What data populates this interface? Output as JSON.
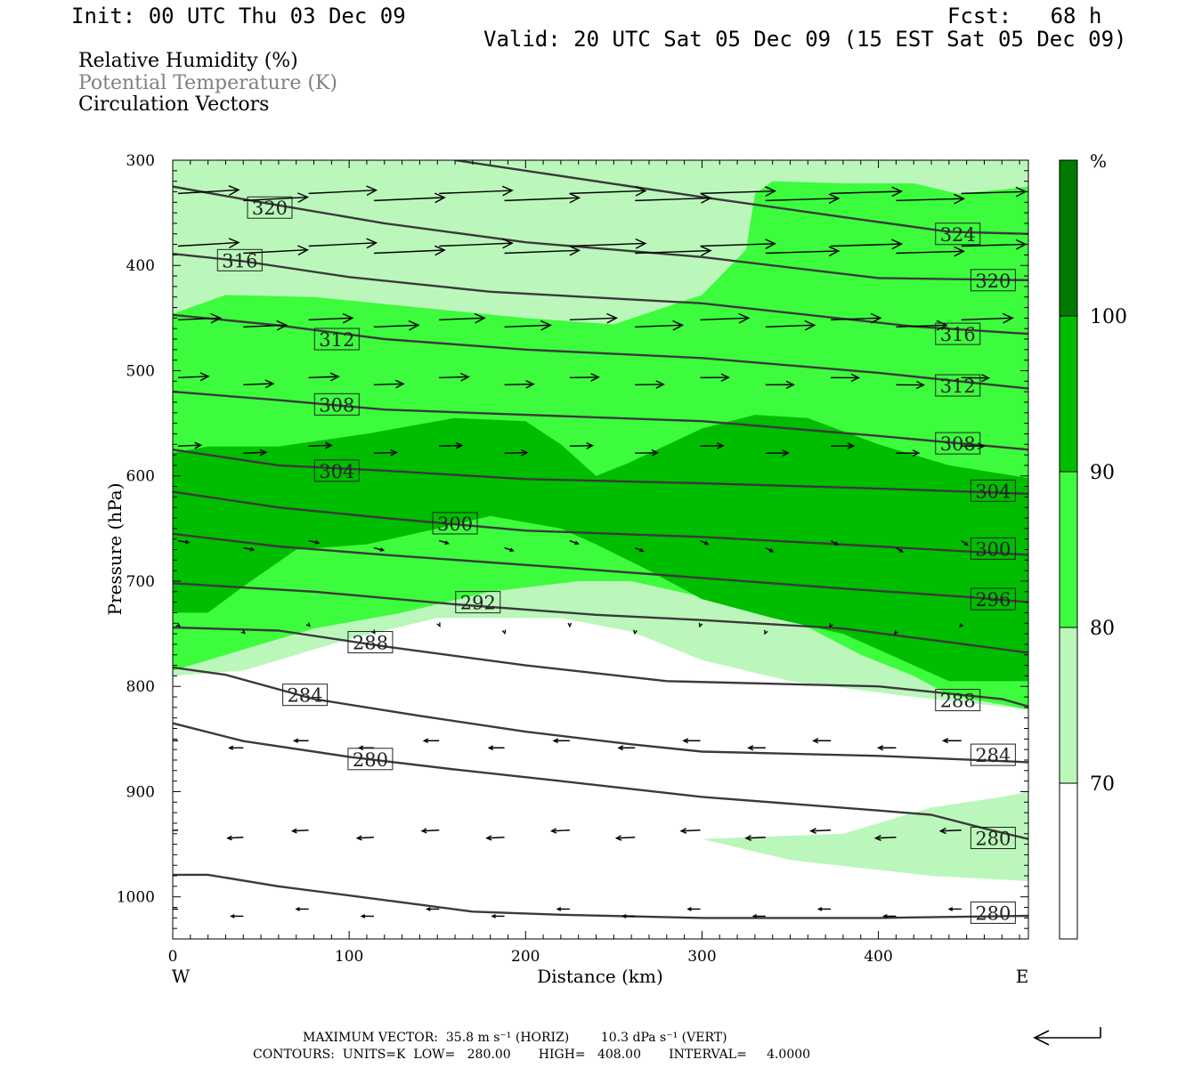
{
  "header": {
    "init": "Init: 00 UTC Thu 03 Dec 09",
    "fcst": "Fcst:   68 h",
    "valid": "Valid: 20 UTC Sat 05 Dec 09 (15 EST Sat 05 Dec 09)"
  },
  "legend_lines": [
    {
      "text": "Relative Humidity (%)",
      "color": "#000000"
    },
    {
      "text": "Potential Temperature (K)",
      "color": "#808080"
    },
    {
      "text": "Circulation Vectors",
      "color": "#000000"
    }
  ],
  "footer": {
    "line1": "MAXIMUM VECTOR:  35.8 m s⁻¹ (HORIZ)        10.3 dPa s⁻¹ (VERT)",
    "line2": "CONTOURS:  UNITS=K  LOW=   280.00       HIGH=   408.00       INTERVAL=     4.0000"
  },
  "chart_data": {
    "type": "cross-section",
    "xlabel": "Distance (km)",
    "ylabel": "Pressure (hPa)",
    "xlim": [
      0,
      485
    ],
    "ylim": [
      300,
      1040
    ],
    "x_ticks": [
      0,
      100,
      200,
      300,
      400
    ],
    "y_ticks": [
      300,
      400,
      500,
      600,
      700,
      800,
      900,
      1000
    ],
    "x_end_labels": {
      "left": "W",
      "right": "E"
    },
    "colorbar": {
      "unit": "%",
      "levels": [
        70,
        80,
        90,
        100
      ],
      "colors": [
        "#ffffff",
        "#bbf7bb",
        "#3dfc3d",
        "#00bd00",
        "#007a00"
      ]
    },
    "rh_fill": [
      {
        "level": 70,
        "color": "#bbf7bb",
        "points": [
          [
            0,
            300
          ],
          [
            485,
            300
          ],
          [
            485,
            985
          ],
          [
            430,
            980
          ],
          [
            350,
            965
          ],
          [
            300,
            945
          ],
          [
            380,
            940
          ],
          [
            430,
            915
          ],
          [
            470,
            905
          ],
          [
            485,
            900
          ],
          [
            485,
            822
          ],
          [
            420,
            810
          ],
          [
            350,
            795
          ],
          [
            300,
            775
          ],
          [
            260,
            748
          ],
          [
            220,
            735
          ],
          [
            150,
            735
          ],
          [
            100,
            755
          ],
          [
            40,
            785
          ],
          [
            0,
            790
          ]
        ]
      },
      {
        "level": 80,
        "color": "#3dfc3d",
        "points": [
          [
            0,
            446
          ],
          [
            30,
            428
          ],
          [
            80,
            430
          ],
          [
            140,
            440
          ],
          [
            200,
            450
          ],
          [
            250,
            456
          ],
          [
            300,
            428
          ],
          [
            325,
            385
          ],
          [
            330,
            332
          ],
          [
            340,
            320
          ],
          [
            380,
            322
          ],
          [
            420,
            322
          ],
          [
            445,
            332
          ],
          [
            470,
            328
          ],
          [
            485,
            325
          ],
          [
            485,
            822
          ],
          [
            440,
            808
          ],
          [
            420,
            790
          ],
          [
            390,
            770
          ],
          [
            350,
            735
          ],
          [
            300,
            715
          ],
          [
            260,
            700
          ],
          [
            230,
            700
          ],
          [
            180,
            710
          ],
          [
            130,
            730
          ],
          [
            80,
            745
          ],
          [
            40,
            765
          ],
          [
            10,
            780
          ],
          [
            0,
            785
          ]
        ]
      },
      {
        "level": 90,
        "color": "#00bd00",
        "points": [
          [
            0,
            578
          ],
          [
            20,
            572
          ],
          [
            60,
            572
          ],
          [
            110,
            560
          ],
          [
            160,
            545
          ],
          [
            200,
            548
          ],
          [
            220,
            570
          ],
          [
            240,
            600
          ],
          [
            258,
            588
          ],
          [
            300,
            555
          ],
          [
            330,
            542
          ],
          [
            360,
            545
          ],
          [
            400,
            570
          ],
          [
            440,
            590
          ],
          [
            485,
            602
          ],
          [
            485,
            795
          ],
          [
            440,
            795
          ],
          [
            400,
            765
          ],
          [
            380,
            750
          ],
          [
            340,
            735
          ],
          [
            300,
            717
          ],
          [
            270,
            690
          ],
          [
            240,
            665
          ],
          [
            220,
            650
          ],
          [
            180,
            638
          ],
          [
            150,
            650
          ],
          [
            110,
            665
          ],
          [
            70,
            670
          ],
          [
            40,
            705
          ],
          [
            20,
            730
          ],
          [
            0,
            730
          ]
        ]
      }
    ],
    "theta_contours": [
      {
        "value": 280,
        "points": [
          [
            0,
            979
          ],
          [
            20,
            979
          ],
          [
            60,
            990
          ],
          [
            120,
            1003
          ],
          [
            170,
            1014
          ],
          [
            220,
            1017
          ],
          [
            300,
            1020
          ],
          [
            400,
            1020
          ],
          [
            485,
            1018
          ]
        ],
        "labels": [
          [
            465,
            1015
          ]
        ]
      },
      {
        "value": 280,
        "points": [
          [
            0,
            835
          ],
          [
            40,
            852
          ],
          [
            100,
            867
          ],
          [
            160,
            879
          ],
          [
            220,
            890
          ],
          [
            300,
            905
          ],
          [
            400,
            918
          ],
          [
            430,
            922
          ],
          [
            460,
            935
          ],
          [
            485,
            945
          ]
        ],
        "labels": [
          [
            112,
            869
          ],
          [
            465,
            944
          ]
        ]
      },
      {
        "value": 284,
        "points": [
          [
            0,
            782
          ],
          [
            30,
            789
          ],
          [
            80,
            812
          ],
          [
            140,
            828
          ],
          [
            200,
            843
          ],
          [
            260,
            855
          ],
          [
            300,
            862
          ],
          [
            400,
            866
          ],
          [
            485,
            872
          ]
        ],
        "labels": [
          [
            75,
            808
          ],
          [
            465,
            865
          ]
        ]
      },
      {
        "value": 288,
        "points": [
          [
            0,
            744
          ],
          [
            60,
            747
          ],
          [
            120,
            762
          ],
          [
            200,
            780
          ],
          [
            280,
            795
          ],
          [
            400,
            800
          ],
          [
            470,
            812
          ],
          [
            485,
            819
          ]
        ],
        "labels": [
          [
            112,
            758
          ],
          [
            445,
            813
          ]
        ]
      },
      {
        "value": 292,
        "points": [
          [
            0,
            702
          ],
          [
            80,
            710
          ],
          [
            160,
            722
          ],
          [
            240,
            732
          ],
          [
            300,
            737
          ],
          [
            380,
            745
          ],
          [
            440,
            758
          ],
          [
            485,
            768
          ]
        ],
        "labels": [
          [
            173,
            720
          ]
        ]
      },
      {
        "value": 296,
        "points": [
          [
            0,
            655
          ],
          [
            60,
            667
          ],
          [
            120,
            675
          ],
          [
            220,
            687
          ],
          [
            300,
            697
          ],
          [
            380,
            707
          ],
          [
            450,
            715
          ],
          [
            485,
            720
          ]
        ],
        "labels": [
          [
            465,
            717
          ]
        ]
      },
      {
        "value": 300,
        "points": [
          [
            0,
            615
          ],
          [
            60,
            630
          ],
          [
            120,
            640
          ],
          [
            200,
            652
          ],
          [
            300,
            658
          ],
          [
            400,
            667
          ],
          [
            485,
            675
          ]
        ],
        "labels": [
          [
            160,
            645
          ],
          [
            465,
            669
          ]
        ]
      },
      {
        "value": 304,
        "points": [
          [
            0,
            575
          ],
          [
            60,
            590
          ],
          [
            120,
            595
          ],
          [
            200,
            603
          ],
          [
            300,
            607
          ],
          [
            400,
            612
          ],
          [
            485,
            617
          ]
        ],
        "labels": [
          [
            93,
            595
          ],
          [
            465,
            614
          ]
        ]
      },
      {
        "value": 308,
        "points": [
          [
            0,
            520
          ],
          [
            60,
            528
          ],
          [
            120,
            537
          ],
          [
            200,
            542
          ],
          [
            300,
            548
          ],
          [
            400,
            562
          ],
          [
            485,
            575
          ]
        ],
        "labels": [
          [
            93,
            532
          ],
          [
            445,
            569
          ]
        ]
      },
      {
        "value": 312,
        "points": [
          [
            0,
            447
          ],
          [
            60,
            457
          ],
          [
            120,
            470
          ],
          [
            200,
            480
          ],
          [
            300,
            488
          ],
          [
            400,
            502
          ],
          [
            485,
            517
          ]
        ],
        "labels": [
          [
            93,
            470
          ],
          [
            445,
            514
          ]
        ]
      },
      {
        "value": 316,
        "points": [
          [
            0,
            389
          ],
          [
            40,
            396
          ],
          [
            100,
            411
          ],
          [
            180,
            425
          ],
          [
            300,
            436
          ],
          [
            420,
            458
          ],
          [
            485,
            465
          ]
        ],
        "labels": [
          [
            38,
            395
          ],
          [
            445,
            465
          ]
        ]
      },
      {
        "value": 320,
        "points": [
          [
            0,
            325
          ],
          [
            50,
            340
          ],
          [
            120,
            360
          ],
          [
            200,
            378
          ],
          [
            300,
            392
          ],
          [
            400,
            412
          ],
          [
            485,
            414
          ]
        ],
        "labels": [
          [
            55,
            345
          ],
          [
            465,
            414
          ]
        ]
      },
      {
        "value": 324,
        "points": [
          [
            160,
            300
          ],
          [
            200,
            310
          ],
          [
            300,
            335
          ],
          [
            380,
            354
          ],
          [
            440,
            368
          ],
          [
            485,
            370
          ]
        ],
        "labels": [
          [
            445,
            370
          ]
        ]
      }
    ]
  }
}
